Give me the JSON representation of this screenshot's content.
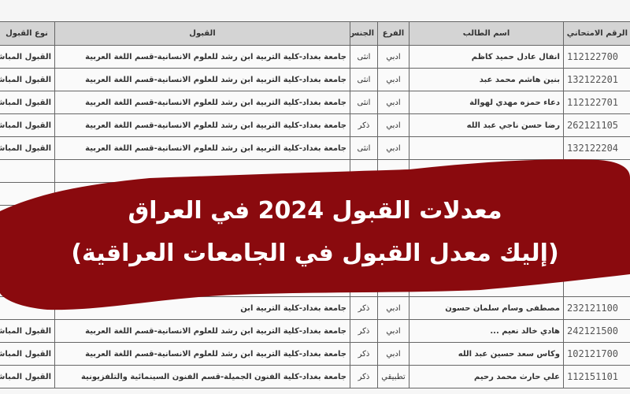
{
  "table": {
    "headers": [
      "الرقم الامتحاني",
      "اسم الطالب",
      "الفرع",
      "الجنس",
      "القبول",
      "نوع القبول"
    ],
    "rows": [
      {
        "exam_no": "112122700",
        "name": "انفال عادل حميد كاظم",
        "branch": "ادبي",
        "gender": "انثى",
        "admission": "جامعة بغداد-كلية التربية ابن رشد للعلوم الانسانية-قسم اللغة العربية",
        "type": "القبول المباشر"
      },
      {
        "exam_no": "132122201",
        "name": "بنين هاشم محمد عبد",
        "branch": "ادبي",
        "gender": "انثى",
        "admission": "جامعة بغداد-كلية التربية ابن رشد للعلوم الانسانية-قسم اللغة العربية",
        "type": "القبول المباشر"
      },
      {
        "exam_no": "112122701",
        "name": "دعاء حمزه مهدي لهوالة",
        "branch": "ادبي",
        "gender": "انثى",
        "admission": "جامعة بغداد-كلية التربية ابن رشد للعلوم الانسانية-قسم اللغة العربية",
        "type": "القبول المباشر"
      },
      {
        "exam_no": "262121105",
        "name": "رضا حسن ناجي عبد الله",
        "branch": "ادبي",
        "gender": "ذكر",
        "admission": "جامعة بغداد-كلية التربية ابن رشد للعلوم الانسانية-قسم اللغة العربية",
        "type": "القبول المباشر"
      },
      {
        "exam_no": "132122204",
        "name": "",
        "branch": "ادبي",
        "gender": "انثى",
        "admission": "جامعة بغداد-كلية التربية ابن رشد للعلوم الانسانية-قسم اللغة العربية",
        "type": "القبول المباشر"
      },
      {
        "exam_no": "",
        "name": "",
        "branch": "",
        "gender": "",
        "admission": "",
        "type": ""
      },
      {
        "exam_no": "",
        "name": "",
        "branch": "",
        "gender": "",
        "admission": "",
        "type": ""
      },
      {
        "exam_no": "",
        "name": "",
        "branch": "",
        "gender": "",
        "admission": "",
        "type": ""
      },
      {
        "exam_no": "",
        "name": "",
        "branch": "",
        "gender": "",
        "admission": "",
        "type": ""
      },
      {
        "exam_no": "",
        "name": "",
        "branch": "",
        "gender": "",
        "admission": "",
        "type": ""
      },
      {
        "exam_no": "",
        "name": "",
        "branch": "",
        "gender": "",
        "admission": "",
        "type": ""
      },
      {
        "exam_no": "232121100",
        "name": "مصطفى وسام سلمان حسون",
        "branch": "ادبي",
        "gender": "ذكر",
        "admission": "جامعة بغداد-كلية التربية ابن",
        "type": ""
      },
      {
        "exam_no": "242121500",
        "name": "هادي خالد نعيم ...",
        "branch": "ادبي",
        "gender": "ذكر",
        "admission": "جامعة بغداد-كلية التربية ابن رشد للعلوم الانسانية-قسم اللغة العربية",
        "type": "القبول المباشر"
      },
      {
        "exam_no": "102121700",
        "name": "وكاس سعد حسين عبد الله",
        "branch": "ادبي",
        "gender": "ذكر",
        "admission": "جامعة بغداد-كلية التربية ابن رشد للعلوم الانسانية-قسم اللغة العربية",
        "type": "القبول المباشر"
      },
      {
        "exam_no": "112151101",
        "name": "علي حارث محمد رحيم",
        "branch": "تطبيقي",
        "gender": "ذكر",
        "admission": "جامعة بغداد-كلية الفنون الجميلة-قسم الفنون السينمائية والتلفزيونية",
        "type": "القبول المباشر"
      }
    ]
  },
  "banner": {
    "title": "معدلات القبول 2024 في العراق",
    "subtitle": "(إليك معدل القبول في الجامعات العراقية)",
    "color": "#8a0a0e"
  }
}
